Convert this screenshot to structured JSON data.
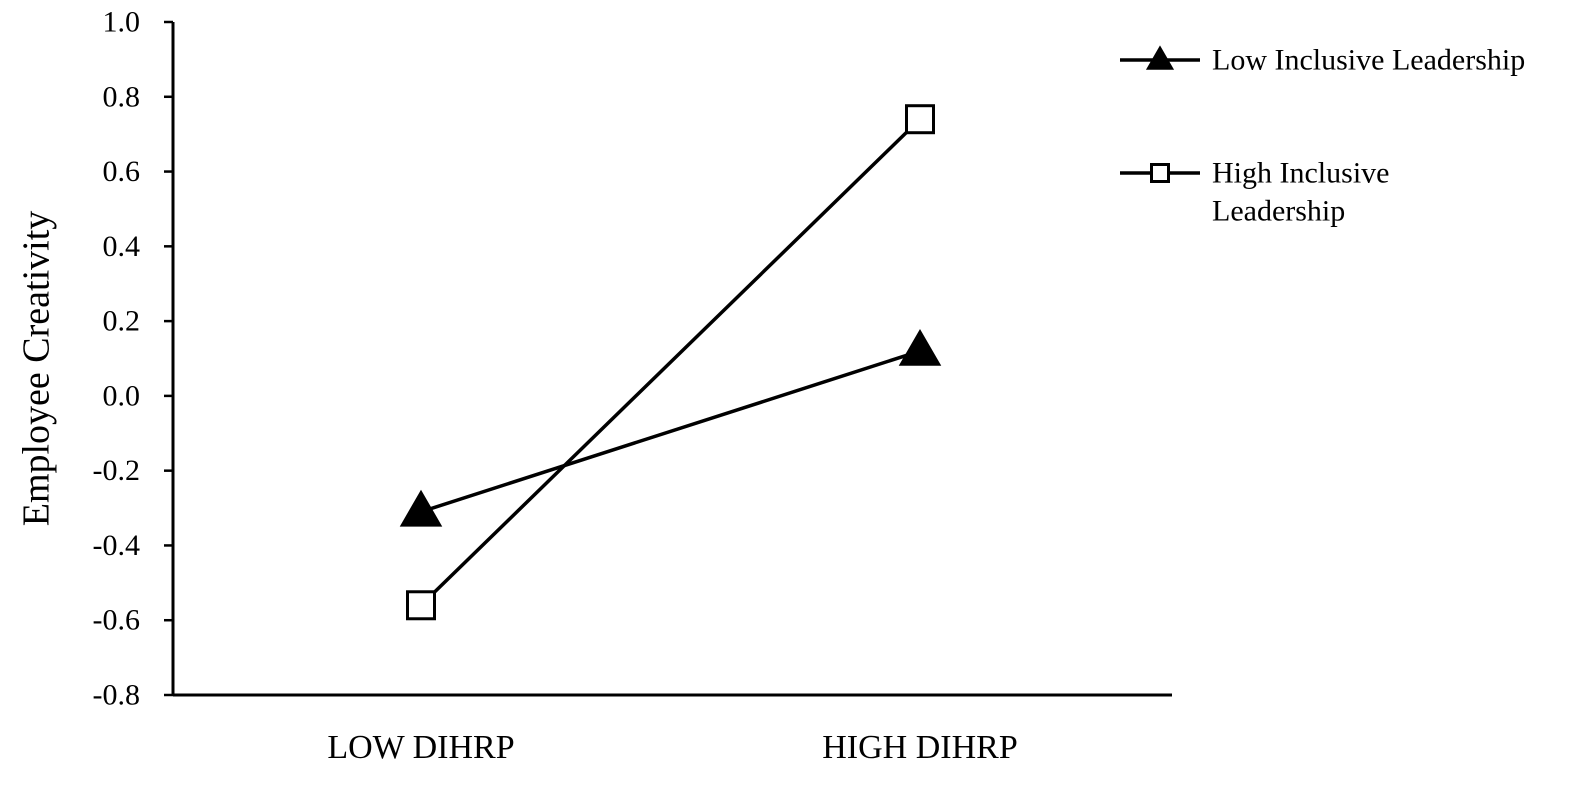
{
  "chart_data": {
    "type": "line",
    "title": "",
    "xlabel": "",
    "ylabel": "Employee Creativity",
    "categories": [
      "LOW DIHRP",
      "HIGH DIHRP"
    ],
    "ylim": [
      -0.8,
      1.0
    ],
    "yticks": [
      "1.0",
      "0.8",
      "0.6",
      "0.4",
      "0.2",
      "0.0",
      "-0.2",
      "-0.4",
      "-0.6",
      "-0.8"
    ],
    "grid": false,
    "legend_position": "top-right",
    "series": [
      {
        "name": "Low Inclusive Leadership",
        "legend_lines": [
          "Low Inclusive Leadership"
        ],
        "marker": "filled-triangle",
        "color": "#000000",
        "values": [
          -0.31,
          0.12
        ]
      },
      {
        "name": "High Inclusive Leadership",
        "legend_lines": [
          "High Inclusive",
          "Leadership"
        ],
        "marker": "open-square",
        "color": "#000000",
        "values": [
          -0.56,
          0.74
        ]
      }
    ]
  }
}
